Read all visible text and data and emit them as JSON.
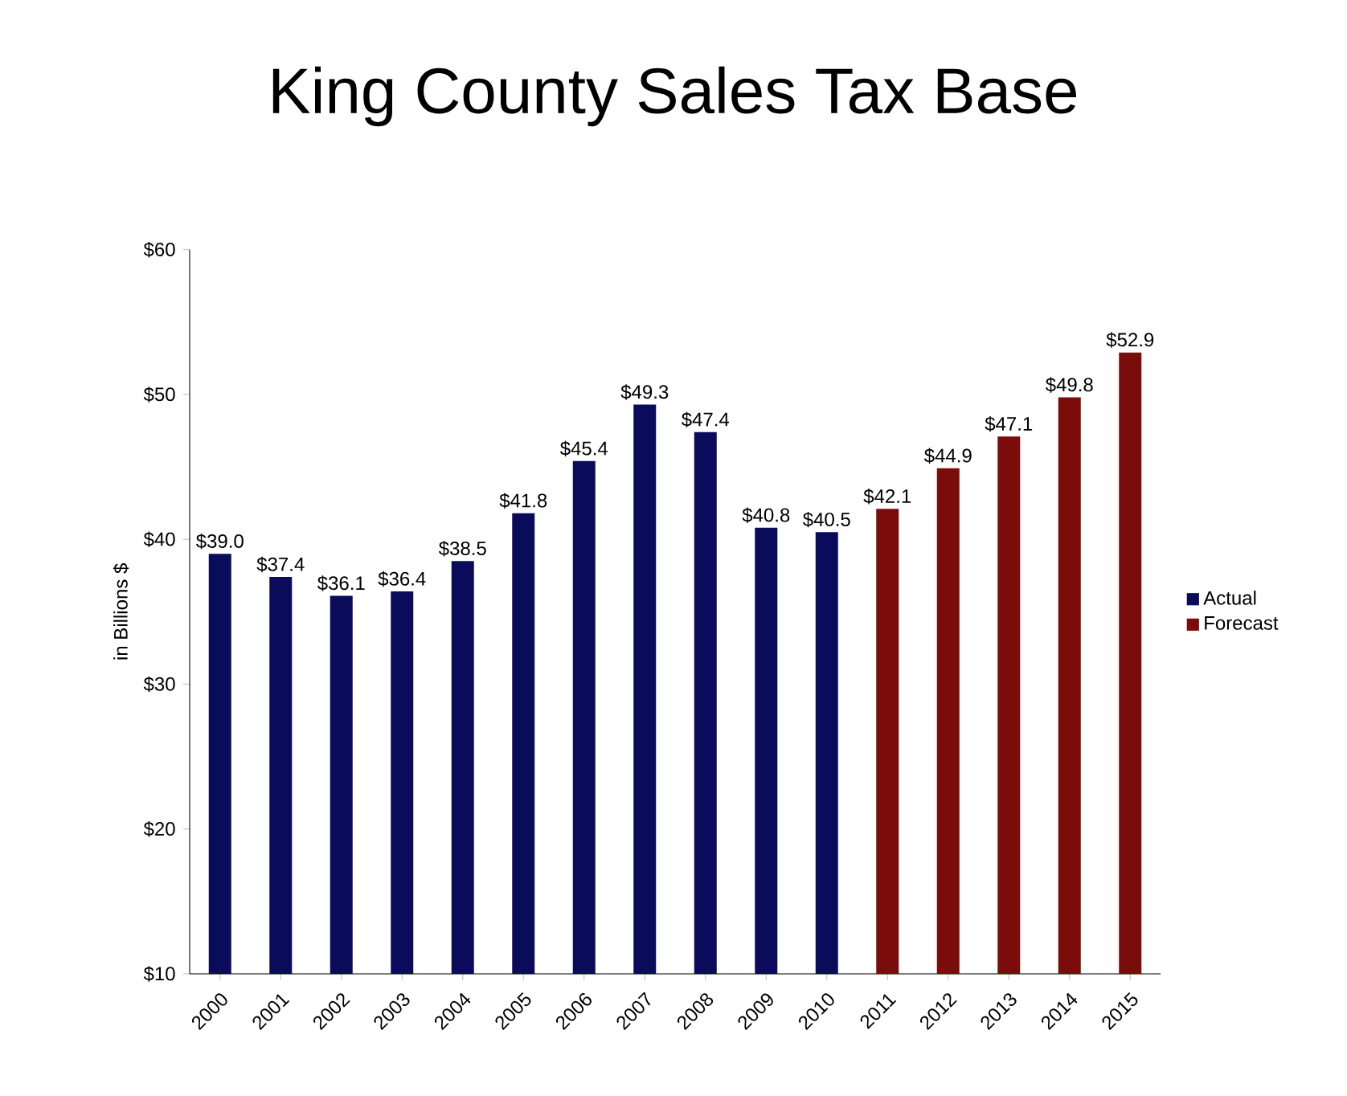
{
  "chart_data": {
    "type": "bar",
    "title": "King County Sales Tax Base",
    "ylabel": "in Billions $",
    "categories": [
      "2000",
      "2001",
      "2002",
      "2003",
      "2004",
      "2005",
      "2006",
      "2007",
      "2008",
      "2009",
      "2010",
      "2011",
      "2012",
      "2013",
      "2014",
      "2015"
    ],
    "series": [
      {
        "name": "Actual",
        "color": "#0b0b5c",
        "values": [
          39.0,
          37.4,
          36.1,
          36.4,
          38.5,
          41.8,
          45.4,
          49.3,
          47.4,
          40.8,
          40.5,
          null,
          null,
          null,
          null,
          null
        ],
        "value_labels": [
          "$39.0",
          "$37.4",
          "$36.1",
          "$36.4",
          "$38.5",
          "$41.8",
          "$45.4",
          "$49.3",
          "$47.4",
          "$40.8",
          "$40.5",
          null,
          null,
          null,
          null,
          null
        ]
      },
      {
        "name": "Forecast",
        "color": "#7a0c0c",
        "values": [
          null,
          null,
          null,
          null,
          null,
          null,
          null,
          null,
          null,
          null,
          null,
          42.1,
          44.9,
          47.1,
          49.8,
          52.9
        ],
        "value_labels": [
          null,
          null,
          null,
          null,
          null,
          null,
          null,
          null,
          null,
          null,
          null,
          "$42.1",
          "$44.9",
          "$47.1",
          "$49.8",
          "$52.9"
        ]
      }
    ],
    "ylim": [
      10,
      60
    ],
    "yticks": [
      {
        "value": 10,
        "label": "$10"
      },
      {
        "value": 20,
        "label": "$20"
      },
      {
        "value": 30,
        "label": "$30"
      },
      {
        "value": 40,
        "label": "$40"
      },
      {
        "value": 50,
        "label": "$50"
      },
      {
        "value": 60,
        "label": "$60"
      }
    ],
    "grid": false,
    "legend": "right"
  }
}
